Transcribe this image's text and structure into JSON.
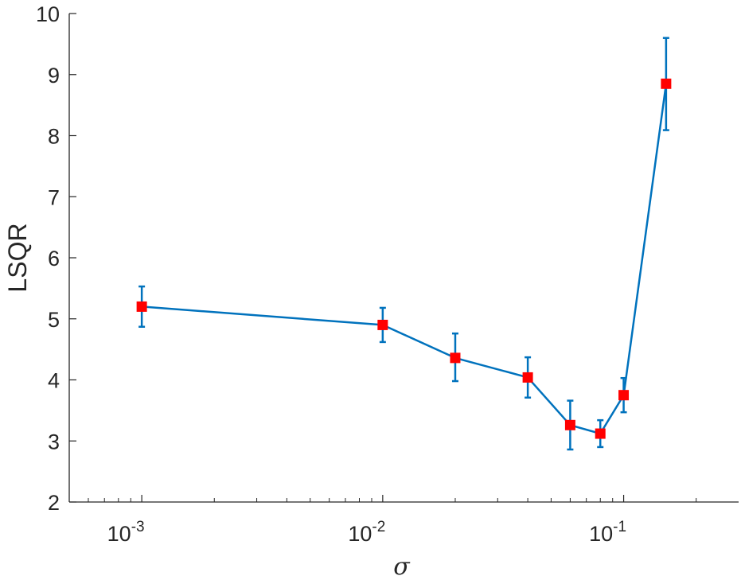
{
  "chart_data": {
    "type": "line",
    "title": "",
    "xlabel": "σ",
    "ylabel": "LSQR",
    "xscale": "log",
    "xlim": [
      0.0005,
      0.3
    ],
    "ylim": [
      2,
      10
    ],
    "grid": false,
    "legend": "none",
    "x_ticks": [
      {
        "value": 0.001,
        "base": "10",
        "exp": "-3"
      },
      {
        "value": 0.01,
        "base": "10",
        "exp": "-2"
      },
      {
        "value": 0.1,
        "base": "10",
        "exp": "-1"
      }
    ],
    "y_ticks": [
      "2",
      "3",
      "4",
      "5",
      "6",
      "7",
      "8",
      "9",
      "10"
    ],
    "series": [
      {
        "x": [
          0.001,
          0.01,
          0.02,
          0.04,
          0.06,
          0.08,
          0.1,
          0.15
        ],
        "y": [
          5.2,
          4.9,
          4.36,
          4.04,
          3.26,
          3.12,
          3.75,
          8.85
        ],
        "err_low": [
          0.33,
          0.28,
          0.38,
          0.33,
          0.4,
          0.22,
          0.28,
          0.76
        ],
        "err_high": [
          0.33,
          0.28,
          0.4,
          0.33,
          0.4,
          0.22,
          0.28,
          0.75
        ]
      }
    ],
    "colors": {
      "line": "#0072BD",
      "marker": "#ff0000",
      "axis": "#262626"
    }
  }
}
